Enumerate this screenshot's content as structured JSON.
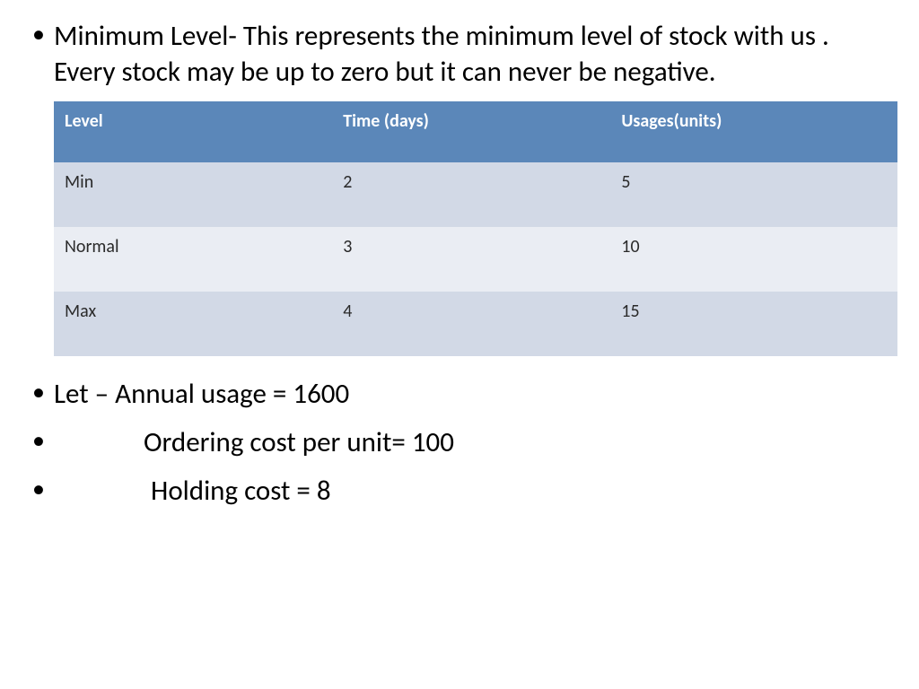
{
  "intro": {
    "text": "Minimum Level-  This represents the minimum level of stock with us . Every stock may be up to zero but it can never be negative."
  },
  "table": {
    "header_bg": "#5b87b9",
    "header_fg": "#ffffff",
    "row_odd_bg": "#d2d9e6",
    "row_even_bg": "#eaedf3",
    "columns": [
      "Level",
      "Time (days)",
      "Usages(units)"
    ],
    "rows": [
      [
        "Min",
        "2",
        "5"
      ],
      [
        "Normal",
        "3",
        "10"
      ],
      [
        "Max",
        "4",
        "15"
      ]
    ]
  },
  "facts": {
    "line1": "Let – Annual usage = 1600",
    "line2": "Ordering cost per unit= 100",
    "line3": "Holding cost          =         8"
  }
}
